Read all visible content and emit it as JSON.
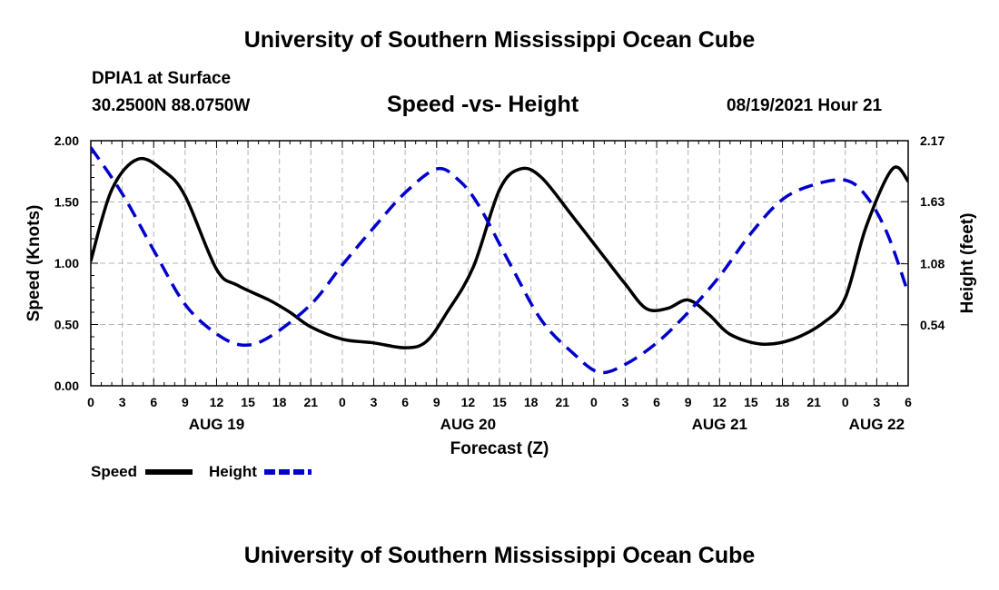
{
  "header": {
    "title_top": "University of Southern Mississippi Ocean Cube",
    "station": "DPIA1 at Surface",
    "coords": "30.2500N  88.0750W",
    "chart_title": "Speed -vs- Height",
    "datetime": "08/19/2021 Hour 21",
    "title_bottom": "University of Southern Mississippi Ocean Cube"
  },
  "chart_data": {
    "type": "line",
    "title": "Speed -vs- Height",
    "xlabel": "Forecast (Z)",
    "ylabel": "Speed (Knots)",
    "y2label": "Height (feet)",
    "x_range_hours": [
      0,
      78
    ],
    "x_tick_step_hours": 3,
    "x_tick_labels": [
      "0",
      "3",
      "6",
      "9",
      "12",
      "15",
      "18",
      "21",
      "0",
      "3",
      "6",
      "9",
      "12",
      "15",
      "18",
      "21",
      "0",
      "3",
      "6",
      "9",
      "12",
      "15",
      "18",
      "21",
      "0",
      "3",
      "6"
    ],
    "date_labels": [
      {
        "label": "AUG 19",
        "hour": 12
      },
      {
        "label": "AUG 20",
        "hour": 36
      },
      {
        "label": "AUG 21",
        "hour": 60
      },
      {
        "label": "AUG 22",
        "hour": 75
      }
    ],
    "ylim": [
      0,
      2.0
    ],
    "y_ticks": [
      0,
      0.5,
      1.0,
      1.5,
      2.0
    ],
    "y_tick_labels": [
      "0.00",
      "0.50",
      "1.00",
      "1.50",
      "2.00"
    ],
    "y2_ticks": [
      0.54,
      1.08,
      1.63,
      2.17
    ],
    "y2_tick_labels": [
      "0.54",
      "1.08",
      "1.63",
      "2.17"
    ],
    "y2lim": [
      0,
      2.17
    ],
    "grid": true,
    "series": [
      {
        "name": "Speed",
        "axis": "left",
        "color": "#000000",
        "dash": "solid",
        "x": [
          0,
          2,
          4.5,
          7,
          9,
          12,
          14,
          17,
          19,
          21,
          24,
          27,
          30,
          32,
          34,
          36.5,
          39,
          41,
          43,
          46,
          49,
          51,
          53,
          55,
          57,
          59,
          61,
          64,
          67,
          70,
          72,
          74,
          76.5,
          78
        ],
        "values": [
          1.02,
          1.6,
          1.85,
          1.75,
          1.55,
          0.95,
          0.82,
          0.7,
          0.6,
          0.48,
          0.38,
          0.35,
          0.31,
          0.36,
          0.6,
          0.97,
          1.6,
          1.77,
          1.7,
          1.38,
          1.05,
          0.83,
          0.63,
          0.63,
          0.7,
          0.58,
          0.42,
          0.34,
          0.38,
          0.52,
          0.72,
          1.3,
          1.77,
          1.67
        ]
      },
      {
        "name": "Height",
        "axis": "right",
        "color": "#0000cc",
        "dash": "dashed",
        "x": [
          0,
          3,
          6,
          9,
          12,
          14.5,
          17,
          21,
          24,
          27,
          30,
          33,
          35,
          37,
          40,
          43,
          46,
          48.5,
          51,
          54,
          57,
          60,
          63,
          66,
          69,
          72,
          74,
          76,
          78
        ],
        "values": [
          2.11,
          1.7,
          1.2,
          0.72,
          0.46,
          0.36,
          0.43,
          0.72,
          1.07,
          1.4,
          1.71,
          1.92,
          1.83,
          1.6,
          1.08,
          0.58,
          0.29,
          0.12,
          0.19,
          0.38,
          0.65,
          0.97,
          1.35,
          1.65,
          1.78,
          1.82,
          1.68,
          1.35,
          0.82
        ]
      }
    ],
    "legend": [
      {
        "label": "Speed",
        "series": "Speed"
      },
      {
        "label": "Height",
        "series": "Height"
      }
    ]
  }
}
